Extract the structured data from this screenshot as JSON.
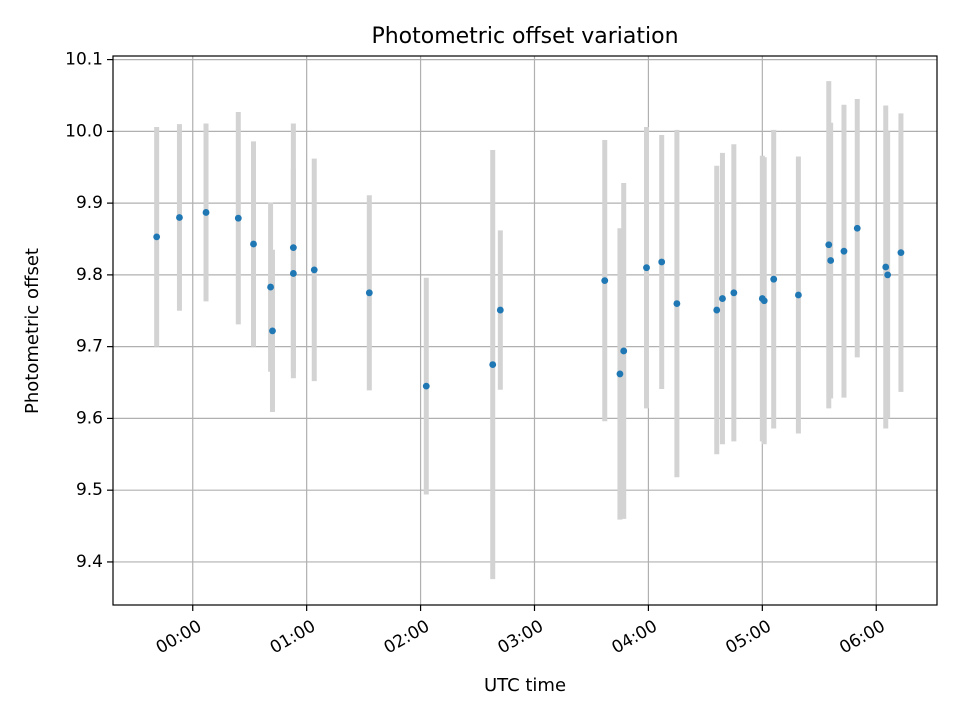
{
  "chart_data": {
    "type": "scatter",
    "title": "Photometric offset variation",
    "xlabel": "UTC time",
    "ylabel": "Photometric offset",
    "grid": true,
    "x_tick_labels": [
      "00:00",
      "01:00",
      "02:00",
      "03:00",
      "04:00",
      "05:00",
      "06:00"
    ],
    "y_tick_labels": [
      "9.4",
      "9.5",
      "9.6",
      "9.7",
      "9.8",
      "9.9",
      "10.0",
      "10.1"
    ],
    "xlim": [
      "23:18",
      "06:32"
    ],
    "ylim": [
      9.34,
      10.105
    ],
    "colors": {
      "point": "#1f77b4",
      "errorbar": "#d3d3d3",
      "grid": "#b0b0b0"
    },
    "series": [
      {
        "points": [
          {
            "x": "23:41",
            "y": 9.853,
            "err": 0.153
          },
          {
            "x": "23:53",
            "y": 9.88,
            "err": 0.13
          },
          {
            "x": "00:07",
            "y": 9.887,
            "err": 0.124
          },
          {
            "x": "00:24",
            "y": 9.879,
            "err": 0.148
          },
          {
            "x": "00:32",
            "y": 9.843,
            "err": 0.143
          },
          {
            "x": "00:41",
            "y": 9.783,
            "err": 0.118
          },
          {
            "x": "00:42",
            "y": 9.722,
            "err": 0.113
          },
          {
            "x": "00:53",
            "y": 9.838,
            "err": 0.173
          },
          {
            "x": "00:53",
            "y": 9.802,
            "err": 0.146
          },
          {
            "x": "01:04",
            "y": 9.807,
            "err": 0.155
          },
          {
            "x": "01:33",
            "y": 9.775,
            "err": 0.136
          },
          {
            "x": "02:03",
            "y": 9.645,
            "err": 0.151
          },
          {
            "x": "02:38",
            "y": 9.675,
            "err": 0.299
          },
          {
            "x": "02:42",
            "y": 9.751,
            "err": 0.111
          },
          {
            "x": "03:37",
            "y": 9.792,
            "err": 0.196
          },
          {
            "x": "03:45",
            "y": 9.662,
            "err": 0.203
          },
          {
            "x": "03:47",
            "y": 9.694,
            "err": 0.234
          },
          {
            "x": "03:59",
            "y": 9.81,
            "err": 0.196
          },
          {
            "x": "04:07",
            "y": 9.818,
            "err": 0.177
          },
          {
            "x": "04:15",
            "y": 9.76,
            "err": 0.242
          },
          {
            "x": "04:36",
            "y": 9.751,
            "err": 0.201
          },
          {
            "x": "04:39",
            "y": 9.767,
            "err": 0.203
          },
          {
            "x": "04:45",
            "y": 9.775,
            "err": 0.207
          },
          {
            "x": "05:00",
            "y": 9.767,
            "err": 0.199
          },
          {
            "x": "05:01",
            "y": 9.764,
            "err": 0.2
          },
          {
            "x": "05:06",
            "y": 9.794,
            "err": 0.208
          },
          {
            "x": "05:19",
            "y": 9.772,
            "err": 0.193
          },
          {
            "x": "05:35",
            "y": 9.842,
            "err": 0.228
          },
          {
            "x": "05:36",
            "y": 9.82,
            "err": 0.192
          },
          {
            "x": "05:43",
            "y": 9.833,
            "err": 0.204
          },
          {
            "x": "05:50",
            "y": 9.865,
            "err": 0.18
          },
          {
            "x": "06:05",
            "y": 9.811,
            "err": 0.225
          },
          {
            "x": "06:06",
            "y": 9.8,
            "err": 0.2
          },
          {
            "x": "06:13",
            "y": 9.831,
            "err": 0.194
          }
        ]
      }
    ]
  }
}
